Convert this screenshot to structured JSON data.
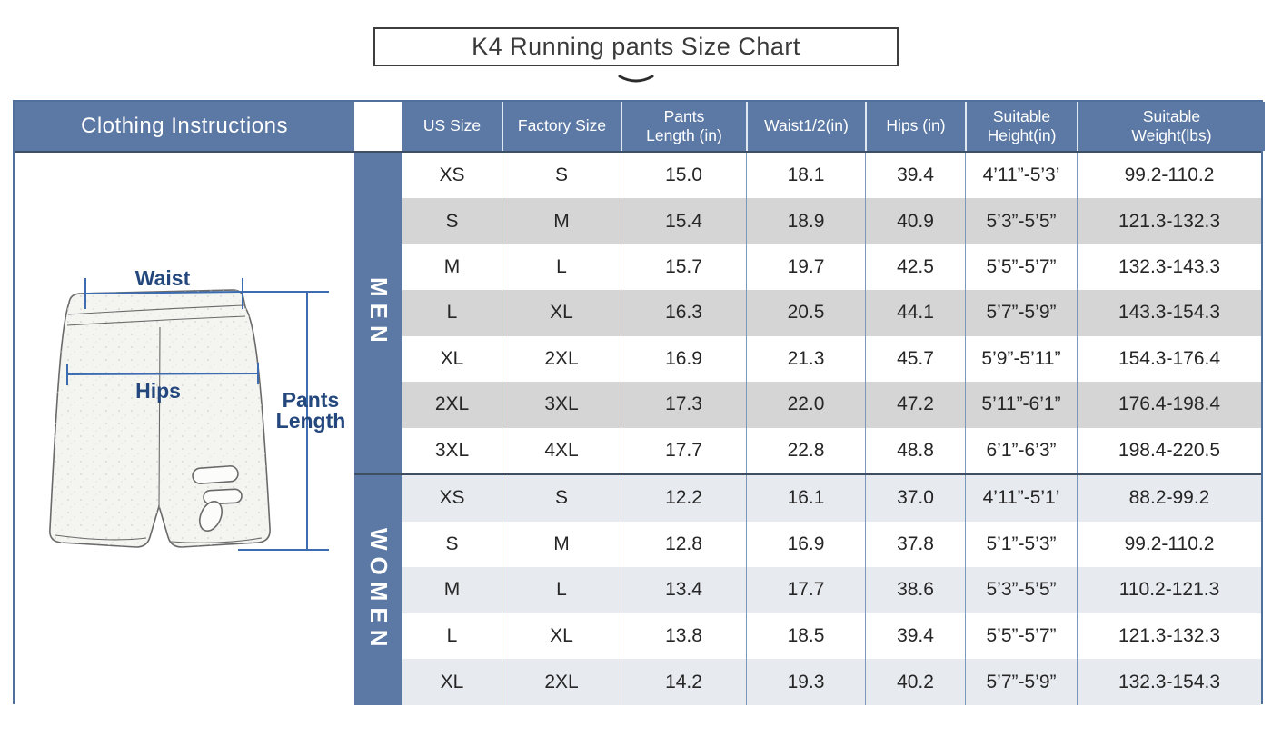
{
  "title": {
    "text": "K4 Running pants Size Chart"
  },
  "instructions_panel": {
    "header": "Clothing Instructions",
    "measure_labels": {
      "waist": "Waist",
      "hips": "Hips",
      "pants_length_line1": "Pants",
      "pants_length_line2": "Length"
    }
  },
  "size_table": {
    "column_headers": [
      "US Size",
      "Factory Size",
      "Pants\nLength (in)",
      "Waist1/2(in)",
      "Hips (in)",
      "Suitable\nHeight(in)",
      "Suitable\nWeight(lbs)"
    ],
    "sections": [
      {
        "label": "MEN",
        "rows": [
          [
            "XS",
            "S",
            "15.0",
            "18.1",
            "39.4",
            "4’11”-5’3’",
            "99.2-110.2"
          ],
          [
            "S",
            "M",
            "15.4",
            "18.9",
            "40.9",
            "5’3”-5’5”",
            "121.3-132.3"
          ],
          [
            "M",
            "L",
            "15.7",
            "19.7",
            "42.5",
            "5’5”-5’7”",
            "132.3-143.3"
          ],
          [
            "L",
            "XL",
            "16.3",
            "20.5",
            "44.1",
            "5’7”-5’9”",
            "143.3-154.3"
          ],
          [
            "XL",
            "2XL",
            "16.9",
            "21.3",
            "45.7",
            "5’9”-5’11”",
            "154.3-176.4"
          ],
          [
            "2XL",
            "3XL",
            "17.3",
            "22.0",
            "47.2",
            "5’11”-6’1”",
            "176.4-198.4"
          ],
          [
            "3XL",
            "4XL",
            "17.7",
            "22.8",
            "48.8",
            "6’1”-6’3”",
            "198.4-220.5"
          ]
        ]
      },
      {
        "label": "WOMEN",
        "rows": [
          [
            "XS",
            "S",
            "12.2",
            "16.1",
            "37.0",
            "4’11”-5’1’",
            "88.2-99.2"
          ],
          [
            "S",
            "M",
            "12.8",
            "16.9",
            "37.8",
            "5’1”-5’3”",
            "99.2-110.2"
          ],
          [
            "M",
            "L",
            "13.4",
            "17.7",
            "38.6",
            "5’3”-5’5”",
            "110.2-121.3"
          ],
          [
            "L",
            "XL",
            "13.8",
            "18.5",
            "39.4",
            "5’5”-5’7”",
            "121.3-132.3"
          ],
          [
            "XL",
            "2XL",
            "14.2",
            "19.3",
            "40.2",
            "5’7”-5’9”",
            "132.3-154.3"
          ]
        ]
      }
    ]
  },
  "colors": {
    "header_blue": "#5b79a4",
    "outer_border": "#50709d",
    "section_divider": "#3e4e63",
    "men_alt_row": "#d5d5d5",
    "women_alt_row": "#e7eaef",
    "column_separator": "#7b97b9",
    "measure_line": "#3d6cb0",
    "measure_label": "#24487e"
  }
}
